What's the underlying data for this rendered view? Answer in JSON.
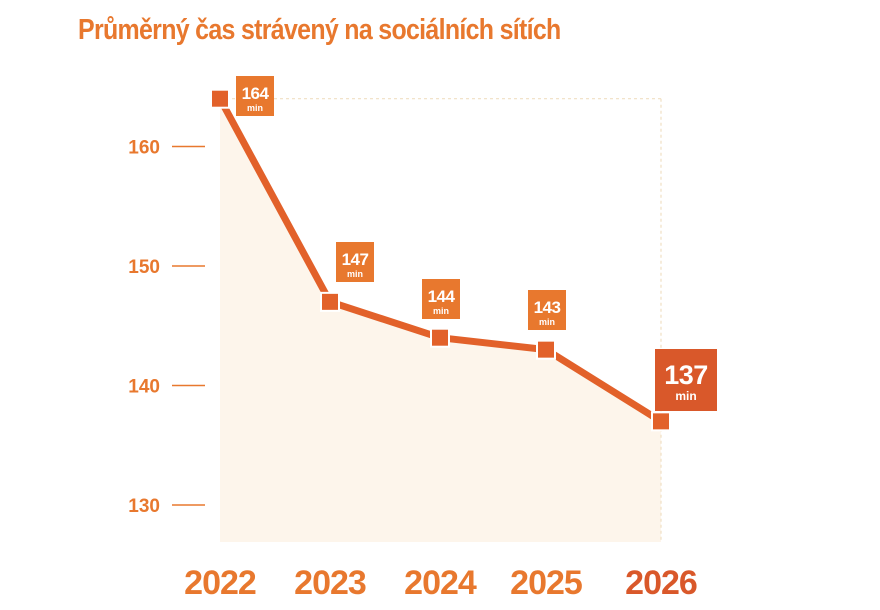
{
  "colors": {
    "accent": "#E8782E",
    "line": "#E2612A",
    "highlight": "#D9582A",
    "area": "#FDF5EB",
    "guide": "#F0DFC3"
  },
  "chart_data": {
    "type": "line",
    "title": "Průměrný čas strávený na sociálních sítích",
    "xlabel": "",
    "ylabel": "",
    "categories": [
      "2022",
      "2023",
      "2024",
      "2025",
      "2026"
    ],
    "values": [
      164,
      147,
      144,
      143,
      137
    ],
    "data_labels": [
      "164",
      "147",
      "144",
      "143",
      "137"
    ],
    "unit": "min",
    "yticks": [
      "160",
      "150",
      "140",
      "130"
    ],
    "ylim": [
      126,
      166
    ],
    "grid": false,
    "legend": "none",
    "highlight_last": true
  }
}
